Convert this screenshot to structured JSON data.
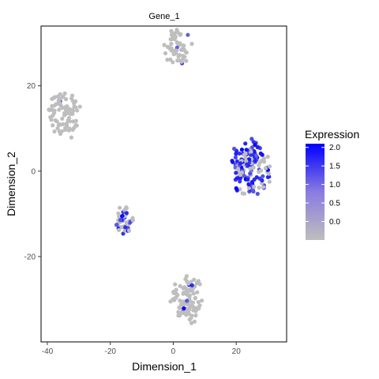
{
  "chart_data": {
    "type": "scatter",
    "title": "Gene_1",
    "xlabel": "Dimension_1",
    "ylabel": "Dimension_2",
    "xlim": [
      -42,
      36
    ],
    "ylim": [
      -40,
      34
    ],
    "x_ticks": [
      -40,
      -20,
      0,
      20
    ],
    "y_ticks": [
      -20,
      0,
      20
    ],
    "grid": false,
    "colors": {
      "low": "#BEBEBE",
      "high": "#0000FF",
      "axis": "#000000"
    },
    "legend": {
      "title": "Expression",
      "position": "right",
      "range": [
        -0.5,
        2.1
      ],
      "breaks": [
        "0.0",
        "0.5",
        "1.0",
        "1.5",
        "2.0"
      ]
    },
    "clusters": [
      {
        "center": [
          1.5,
          29
        ],
        "spread": [
          4.5,
          4.5
        ],
        "n": 60,
        "expressed_fraction": 0.08
      },
      {
        "center": [
          -34.5,
          13
        ],
        "spread": [
          5.5,
          6
        ],
        "n": 85,
        "expressed_fraction": 0.05
      },
      {
        "center": [
          24.5,
          1
        ],
        "spread": [
          7,
          7
        ],
        "n": 150,
        "expressed_fraction": 0.7
      },
      {
        "center": [
          -15.5,
          -11.5
        ],
        "spread": [
          3,
          3.5
        ],
        "n": 45,
        "expressed_fraction": 0.45
      },
      {
        "center": [
          4.5,
          -30
        ],
        "spread": [
          5.5,
          6
        ],
        "n": 100,
        "expressed_fraction": 0.06
      }
    ]
  }
}
